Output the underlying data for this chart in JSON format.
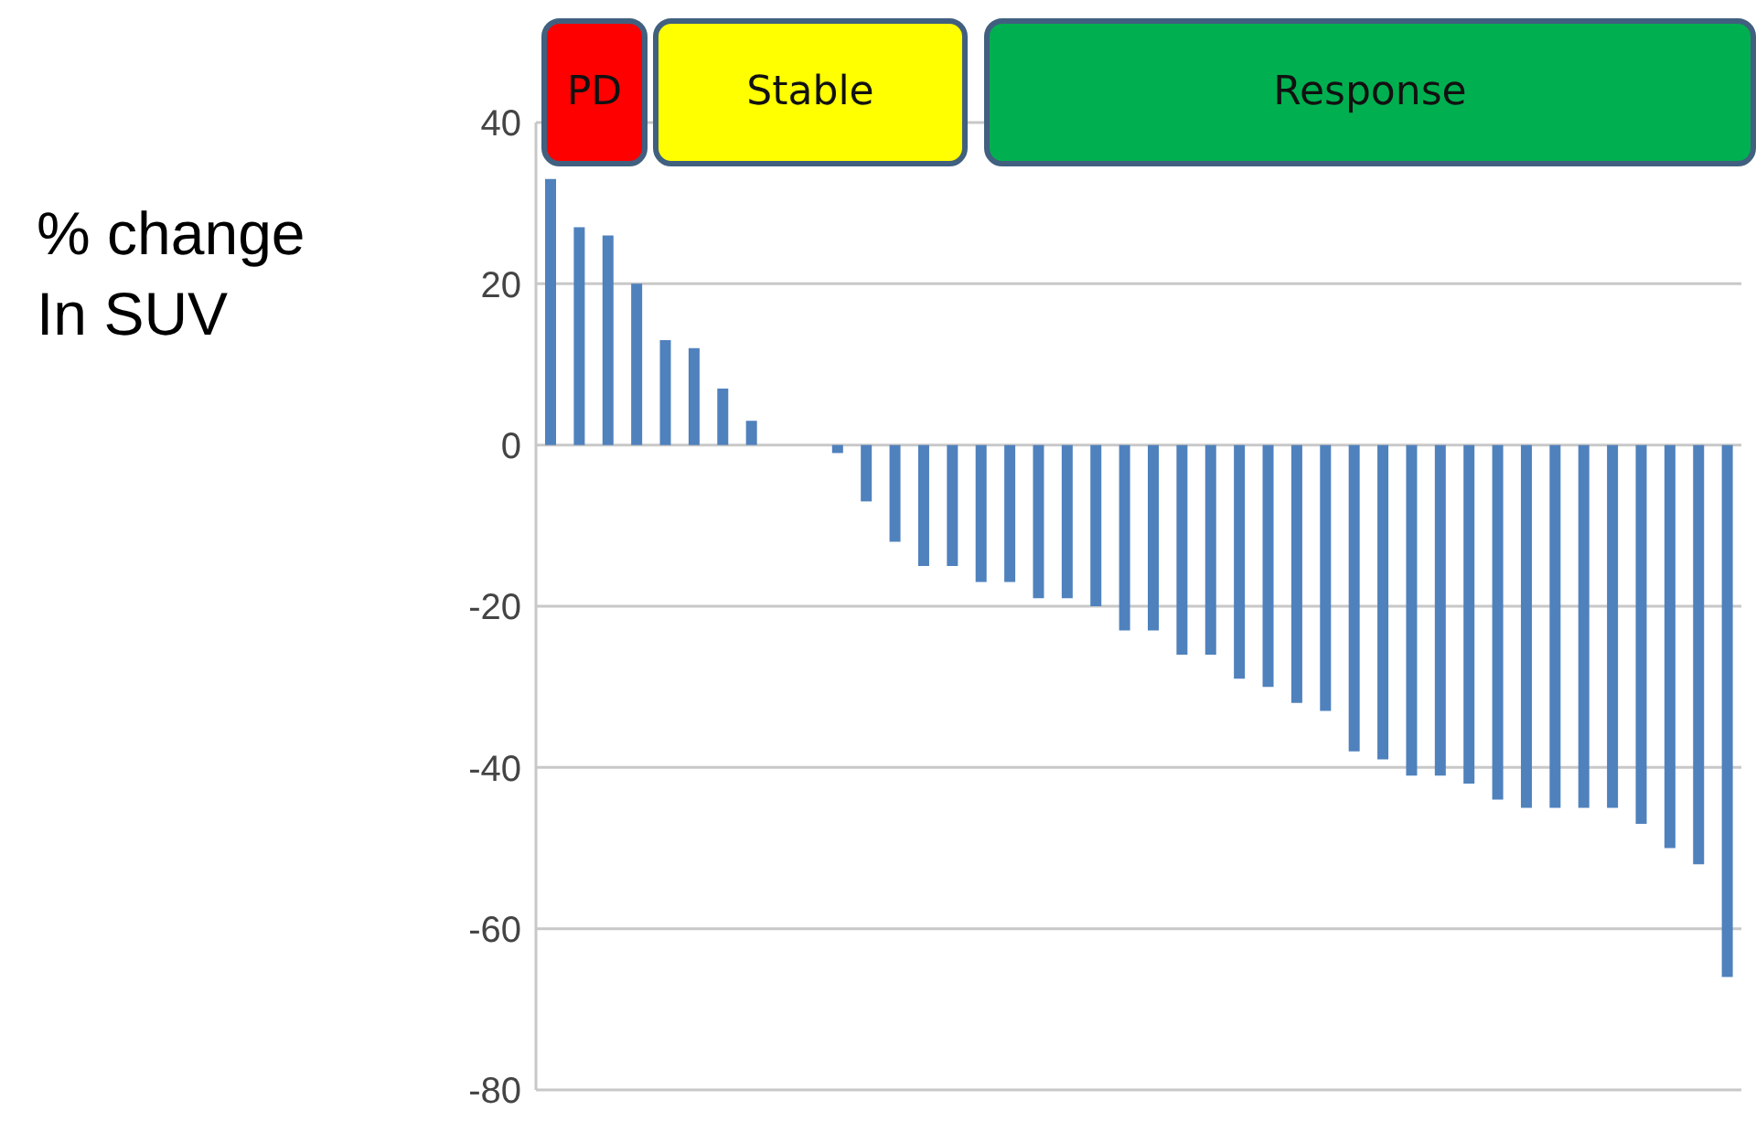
{
  "chart_data": {
    "type": "bar",
    "ylabel": "% change In SUV",
    "categories": [
      null,
      null,
      null,
      null,
      null,
      null,
      null,
      null,
      null,
      null,
      null,
      null,
      null,
      null,
      null,
      null,
      null,
      null,
      null,
      null,
      null,
      null,
      null,
      null,
      null,
      null,
      null,
      null,
      null,
      null,
      null,
      null,
      null,
      null,
      null,
      null,
      null,
      null,
      null,
      null,
      null,
      null
    ],
    "values": [
      33,
      27,
      26,
      20,
      13,
      12,
      7,
      3,
      null,
      null,
      -1,
      -7,
      -12,
      -15,
      -15,
      -17,
      -17,
      -19,
      -19,
      -20,
      -23,
      -23,
      -26,
      -26,
      -29,
      -30,
      -32,
      -33,
      -38,
      -39,
      -41,
      -41,
      -42,
      -44,
      -45,
      -45,
      -45,
      -45,
      -47,
      -50,
      -52,
      -66
    ],
    "color": "#4f81bd",
    "ylim": [
      -80,
      40
    ],
    "yticks": [
      -80,
      -60,
      -40,
      -20,
      0,
      20,
      40
    ],
    "grid": "y",
    "tick_labels": "y",
    "annotations": [
      "PD",
      "Stable",
      "Response"
    ]
  }
}
